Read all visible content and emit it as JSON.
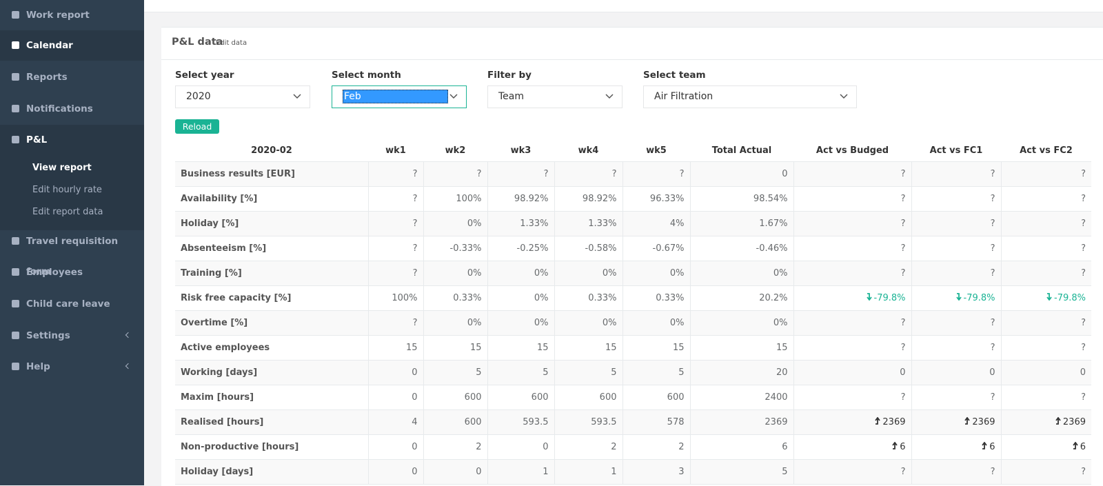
{
  "sidebar": {
    "items": [
      "Work report",
      "Calendar",
      "Reports",
      "Notifications",
      "P&L",
      "Travel requisition form",
      "Employees",
      "Child care leave",
      "Settings",
      "Help"
    ],
    "submenu": [
      "View report",
      "Edit hourly rate",
      "Edit report data"
    ]
  },
  "panel": {
    "title": "P&L data",
    "subtitle": "Edit data"
  },
  "filters": [
    {
      "label": "Select year",
      "value": "2020"
    },
    {
      "label": "Select month",
      "value": "Feb"
    },
    {
      "label": "Filter by",
      "value": "Team"
    },
    {
      "label": "Select team",
      "value": "Air Filtration"
    }
  ],
  "reload": "Reload",
  "table": {
    "header": [
      "2020-02",
      "wk1",
      "wk2",
      "wk3",
      "wk4",
      "wk5",
      "Total Actual",
      "Act vs Budged",
      "Act vs FC1",
      "Act vs FC2"
    ],
    "rows": [
      [
        "Business results [EUR]",
        "?",
        "?",
        "?",
        "?",
        "?",
        "0",
        "?",
        "?",
        "?"
      ],
      [
        "Availability [%]",
        "?",
        "100%",
        "98.92%",
        "98.92%",
        "96.33%",
        "98.54%",
        "?",
        "?",
        "?"
      ],
      [
        "Holiday [%]",
        "?",
        "0%",
        "1.33%",
        "1.33%",
        "4%",
        "1.67%",
        "?",
        "?",
        "?"
      ],
      [
        "Absenteeism [%]",
        "?",
        "-0.33%",
        "-0.25%",
        "-0.58%",
        "-0.67%",
        "-0.46%",
        "?",
        "?",
        "?"
      ],
      [
        "Training [%]",
        "?",
        "0%",
        "0%",
        "0%",
        "0%",
        "0%",
        "?",
        "?",
        "?"
      ],
      [
        "Risk free capacity [%]",
        "100%",
        "0.33%",
        "0%",
        "0.33%",
        "0.33%",
        "20.2%",
        {
          "text": "-79.8%",
          "trend": "down"
        },
        {
          "text": "-79.8%",
          "trend": "down"
        },
        {
          "text": "-79.8%",
          "trend": "down"
        }
      ],
      [
        "Overtime [%]",
        "?",
        "0%",
        "0%",
        "0%",
        "0%",
        "0%",
        "?",
        "?",
        "?"
      ],
      [
        "Active employees",
        "15",
        "15",
        "15",
        "15",
        "15",
        "15",
        "?",
        "?",
        "?"
      ],
      [
        "Working [days]",
        "0",
        "5",
        "5",
        "5",
        "5",
        "20",
        "0",
        "0",
        "0"
      ],
      [
        "Maxim [hours]",
        "0",
        "600",
        "600",
        "600",
        "600",
        "2400",
        "?",
        "?",
        "?"
      ],
      [
        "Realised [hours]",
        "4",
        "600",
        "593.5",
        "593.5",
        "578",
        "2369",
        {
          "text": "2369",
          "trend": "up"
        },
        {
          "text": "2369",
          "trend": "up"
        },
        {
          "text": "2369",
          "trend": "up"
        }
      ],
      [
        "Non-productive [hours]",
        "0",
        "2",
        "0",
        "2",
        "2",
        "6",
        {
          "text": "6",
          "trend": "up"
        },
        {
          "text": "6",
          "trend": "up"
        },
        {
          "text": "6",
          "trend": "up"
        }
      ],
      [
        "Holiday [days]",
        "0",
        "0",
        "1",
        "1",
        "3",
        "5",
        "?",
        "?",
        "?"
      ]
    ]
  }
}
